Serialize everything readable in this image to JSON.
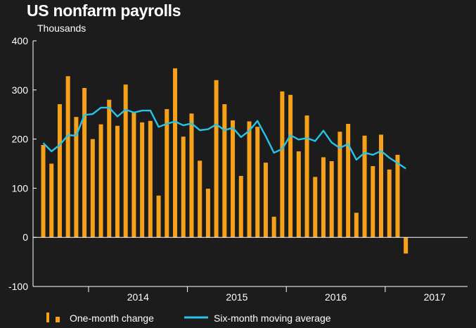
{
  "title": "US nonfarm payrolls",
  "subtitle": "Thousands",
  "chart_data": {
    "type": "bar",
    "title": "US nonfarm payrolls",
    "ylabel": "Thousands",
    "ylim": [
      -100,
      400
    ],
    "yticks": [
      -100,
      0,
      100,
      200,
      300,
      400
    ],
    "x_year_labels": [
      "2014",
      "2015",
      "2016",
      "2017"
    ],
    "grid": false,
    "legend_position": "bottom",
    "colors": {
      "bar": "#f7a11a",
      "line": "#29c3ea",
      "axis": "#ffffff",
      "background": "#1c1c1c"
    },
    "x": [
      "2013-07",
      "2013-08",
      "2013-09",
      "2013-10",
      "2013-11",
      "2013-12",
      "2014-01",
      "2014-02",
      "2014-03",
      "2014-04",
      "2014-05",
      "2014-06",
      "2014-07",
      "2014-08",
      "2014-09",
      "2014-10",
      "2014-11",
      "2014-12",
      "2015-01",
      "2015-02",
      "2015-03",
      "2015-04",
      "2015-05",
      "2015-06",
      "2015-07",
      "2015-08",
      "2015-09",
      "2015-10",
      "2015-11",
      "2015-12",
      "2016-01",
      "2016-02",
      "2016-03",
      "2016-04",
      "2016-05",
      "2016-06",
      "2016-07",
      "2016-08",
      "2016-09",
      "2016-10",
      "2016-11",
      "2016-12",
      "2017-01",
      "2017-02",
      "2017-03"
    ],
    "series": [
      {
        "name": "One-month change",
        "type": "bar",
        "values": [
          188,
          150,
          271,
          328,
          245,
          304,
          200,
          230,
          280,
          227,
          311,
          255,
          234,
          237,
          85,
          261,
          344,
          205,
          252,
          156,
          99,
          320,
          271,
          238,
          125,
          236,
          225,
          152,
          42,
          297,
          290,
          175,
          248,
          123,
          163,
          155,
          215,
          231,
          50,
          207,
          145,
          209,
          138,
          168,
          -33
        ]
      },
      {
        "name": "Six-month moving average",
        "type": "line",
        "values": [
          192,
          175,
          188,
          208,
          207,
          249,
          251,
          264,
          264,
          246,
          260,
          254,
          258,
          258,
          225,
          231,
          236,
          228,
          232,
          218,
          220,
          230,
          218,
          223,
          204,
          217,
          237,
          206,
          172,
          180,
          208,
          199,
          202,
          196,
          217,
          193,
          182,
          190,
          158,
          172,
          168,
          176,
          162,
          151,
          140
        ]
      }
    ]
  }
}
